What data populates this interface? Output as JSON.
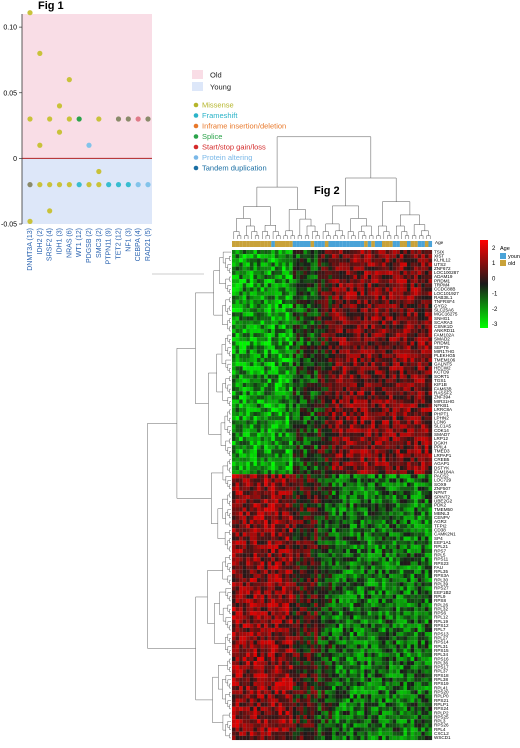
{
  "fig1": {
    "title": "Fig 1",
    "chart_data": {
      "type": "scatter",
      "categories": [
        "DNMT3A (13)",
        "IDH2 (2)",
        "SRSF2 (4)",
        "IDH1 (3)",
        "NRAS (6)",
        "WT1 (12)",
        "PDGSB (2)",
        "SMC3 (2)",
        "PTPN11 (9)",
        "TET2 (12)",
        "NF1 (3)",
        "CEBPA (4)",
        "RAD21 (5)"
      ],
      "ylim": [
        -0.05,
        0.11
      ],
      "yticks": [
        -0.05,
        0,
        0.05,
        0.1
      ],
      "ytick_labels": [
        "-0.05",
        "0",
        "0.05",
        "0.10"
      ],
      "regions": [
        {
          "name": "Old",
          "from": 0,
          "to": 0.11,
          "color": "#f9dde6"
        },
        {
          "name": "Young",
          "from": -0.05,
          "to": 0,
          "color": "#dde7f9"
        }
      ],
      "zero_line_color": "#b22222",
      "points": [
        {
          "cat": 0,
          "y": 0.111,
          "type": "Missense"
        },
        {
          "cat": 0,
          "y": 0.03,
          "type": "Missense"
        },
        {
          "cat": 0,
          "y": -0.02,
          "type": "Frameshift-dark"
        },
        {
          "cat": 0,
          "y": -0.048,
          "type": "Missense"
        },
        {
          "cat": 1,
          "y": 0.08,
          "type": "Missense"
        },
        {
          "cat": 1,
          "y": 0.01,
          "type": "Missense"
        },
        {
          "cat": 1,
          "y": -0.02,
          "type": "Missense"
        },
        {
          "cat": 2,
          "y": 0.03,
          "type": "Missense"
        },
        {
          "cat": 2,
          "y": -0.04,
          "type": "Missense"
        },
        {
          "cat": 2,
          "y": -0.02,
          "type": "Missense"
        },
        {
          "cat": 3,
          "y": 0.04,
          "type": "Missense"
        },
        {
          "cat": 3,
          "y": 0.02,
          "type": "Missense"
        },
        {
          "cat": 3,
          "y": -0.02,
          "type": "Missense"
        },
        {
          "cat": 4,
          "y": 0.06,
          "type": "Missense"
        },
        {
          "cat": 4,
          "y": 0.03,
          "type": "Missense"
        },
        {
          "cat": 4,
          "y": -0.02,
          "type": "Missense"
        },
        {
          "cat": 5,
          "y": 0.03,
          "type": "Splice"
        },
        {
          "cat": 5,
          "y": -0.02,
          "type": "Frameshift"
        },
        {
          "cat": 6,
          "y": 0.01,
          "type": "Protein altering"
        },
        {
          "cat": 6,
          "y": -0.02,
          "type": "Missense"
        },
        {
          "cat": 7,
          "y": 0.03,
          "type": "Missense"
        },
        {
          "cat": 7,
          "y": -0.01,
          "type": "Missense"
        },
        {
          "cat": 7,
          "y": -0.02,
          "type": "Missense"
        },
        {
          "cat": 8,
          "y": -0.02,
          "type": "Frameshift"
        },
        {
          "cat": 9,
          "y": 0.03,
          "type": "Frameshift-dark"
        },
        {
          "cat": 9,
          "y": -0.02,
          "type": "Frameshift"
        },
        {
          "cat": 10,
          "y": 0.03,
          "type": "Frameshift-dark"
        },
        {
          "cat": 10,
          "y": -0.02,
          "type": "Frameshift"
        },
        {
          "cat": 11,
          "y": 0.03,
          "type": "Start/stop gain/loss-pink"
        },
        {
          "cat": 11,
          "y": -0.02,
          "type": "Protein altering"
        },
        {
          "cat": 12,
          "y": 0.03,
          "type": "Frameshift-dark"
        },
        {
          "cat": 12,
          "y": -0.02,
          "type": "Protein altering"
        }
      ]
    },
    "legend_regions": [
      {
        "label": "Old",
        "color": "#f9dde6"
      },
      {
        "label": "Young",
        "color": "#dde7f9"
      }
    ],
    "legend_types": [
      {
        "label": "Missense",
        "color": "#b5b52a"
      },
      {
        "label": "Frameshift",
        "color": "#2ab3c8"
      },
      {
        "label": "Inframe insertion/deletion",
        "color": "#e8782a"
      },
      {
        "label": "Splice",
        "color": "#2aa34a"
      },
      {
        "label": "Start/stop gain/loss",
        "color": "#d42a2a"
      },
      {
        "label": "Protein altering",
        "color": "#7ab8e8"
      },
      {
        "label": "Tandem duplication",
        "color": "#1a6ea3"
      }
    ],
    "point_colors": {
      "Missense": "#c9c23a",
      "Frameshift": "#38bdd0",
      "Frameshift-dark": "#8a8a6a",
      "Inframe insertion/deletion": "#e8782a",
      "Splice": "#2aa34a",
      "Start/stop gain/loss": "#d42a2a",
      "Start/stop gain/loss-pink": "#e07a88",
      "Protein altering": "#82c3ea",
      "Tandem duplication": "#1a6ea3"
    }
  },
  "fig2": {
    "title": "Fig 2",
    "chart_data": {
      "type": "heatmap",
      "n_cols": 56,
      "n_rows": 118,
      "age_label": "Age",
      "age_colors": {
        "young": "#4aa3d8",
        "old": "#c9a23a"
      },
      "age_pattern": "oooooooooooyoooooyyyyyoyyyoyyyyyyyyyyoyoyyoooyyooyooyyoy",
      "color_scale": {
        "min": -3,
        "max": 3,
        "low": "#00ff00",
        "mid": "#1a1a1a",
        "high": "#ff0000"
      },
      "legend_ticks": [
        "2",
        "1",
        "0",
        "-1",
        "-2",
        "-3"
      ],
      "legend_title": "Age",
      "legend_age": [
        {
          "label": "young",
          "color": "#4aa3d8"
        },
        {
          "label": "old",
          "color": "#c9a23a"
        }
      ],
      "row_labels": [
        "TSIX",
        "XIST",
        "KLHL12",
        "UTS2",
        "ZNF672",
        "LOC100287",
        "ADAM19",
        "PRDM1",
        "TRPM4",
        "CCDC88B",
        "LOC101927",
        "RAB3IL1",
        "TNFRSF4",
        "GYG2",
        "SLC25A6",
        "MGC16275",
        "SNHG1",
        "SCARA3",
        "CSNK1D",
        "ANKRD11",
        "FAM102A",
        "SMAD2",
        "PRDM1",
        "SEPT9",
        "MIR17HG",
        "PLEKHG5",
        "TMEM106",
        "GALNT5",
        "HECW2",
        "KCTD9",
        "SORT1",
        "TGS1",
        "KIF1B",
        "FAM63B",
        "RASSF2",
        "ZNF394",
        "MIR31HG",
        "NFKB1",
        "LRRC8A",
        "PHPT1",
        "LPHN2",
        "LCN6",
        "SLC1A5",
        "CDK14",
        "SMAD7",
        "LRP12",
        "DGKH",
        "PPIL4",
        "TMED3",
        "LRPAP1",
        "CREB5",
        "AGAP1",
        "DSTYK",
        "FAM184A",
        "PACS2",
        "LOC729",
        "SOX9",
        "ZNF507",
        "NPNT",
        "SPINT2",
        "UBE2G2",
        "PDK2",
        "TMEM50",
        "MBNL3",
        "CENPV",
        "AGR2",
        "TFPI2",
        "CD38",
        "CAMK2N1",
        "SP4",
        "EEF1A1",
        "RPL21",
        "RPS7",
        "RPL5",
        "RPS11",
        "RPS23",
        "FAU",
        "RPL35",
        "RPS3A",
        "RPL30",
        "RPL39",
        "RPS27",
        "EEF1B2",
        "RPL9",
        "RPS8",
        "RPL26",
        "RPL32",
        "RPS6",
        "RPL12",
        "RPL19",
        "RPS12",
        "RPL7",
        "RPS13",
        "RPL27",
        "RPS14",
        "RPL31",
        "RPS15",
        "RPL34",
        "RPS16",
        "RPL36",
        "RPS17",
        "RPL37",
        "RPS18",
        "RPL38",
        "RPS19",
        "RPL41",
        "RPS20",
        "RPLP0",
        "RPS21",
        "RPLP1",
        "RPS24",
        "RPLP2",
        "RPS25",
        "RPL3",
        "RPS26",
        "RPL4",
        "CXCL2",
        "WSCD1"
      ]
    }
  }
}
